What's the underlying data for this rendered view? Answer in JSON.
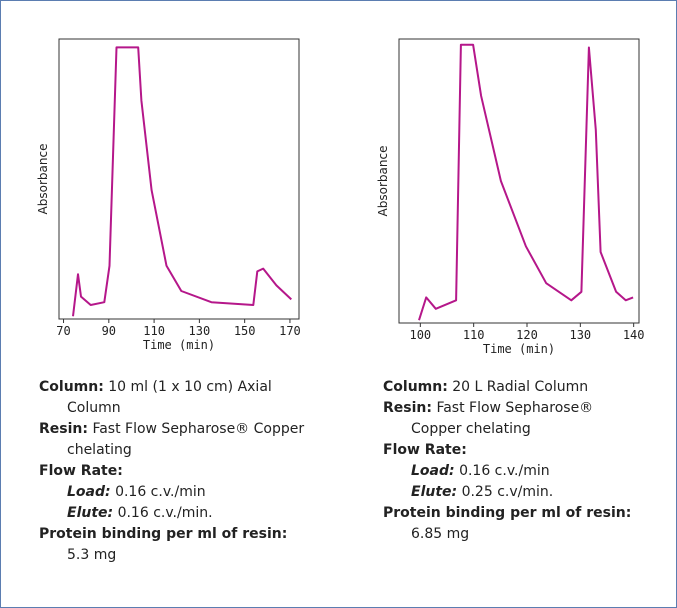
{
  "chart_data": [
    {
      "type": "line",
      "ylabel": "Absorbance",
      "xlabel": "Time (min)",
      "xlim": [
        68,
        174
      ],
      "xticks": [
        70,
        90,
        110,
        130,
        150,
        170
      ],
      "ylim": [
        0,
        100
      ],
      "series": [
        {
          "color": "#b5178a",
          "x": [
            74.2,
            76.4,
            77.7,
            82,
            88,
            90.3,
            93.4,
            103,
            104.4,
            108.9,
            115.5,
            122,
            135.3,
            153.8,
            155.6,
            158.2,
            164,
            170.6
          ],
          "values": [
            1,
            16,
            8,
            5,
            6,
            19,
            97,
            97,
            78,
            46,
            19,
            10,
            6,
            5,
            17,
            18,
            12,
            7
          ]
        }
      ]
    },
    {
      "type": "line",
      "ylabel": "Absorbance",
      "xlabel": "Time (min)",
      "xlim": [
        96,
        141
      ],
      "xticks": [
        100,
        110,
        120,
        130,
        140
      ],
      "ylim": [
        0,
        100
      ],
      "series": [
        {
          "color": "#b5178a",
          "x": [
            99.75,
            101.1,
            102.9,
            106.7,
            107.6,
            109.9,
            111.4,
            115.1,
            119.8,
            123.6,
            128.3,
            130.2,
            131.6,
            132.9,
            133.8,
            136.7,
            138.5,
            139.9
          ],
          "values": [
            1,
            9,
            5,
            8,
            98,
            98,
            80,
            50,
            27,
            14,
            8,
            11,
            97,
            68,
            25,
            11,
            8,
            9
          ]
        }
      ]
    }
  ],
  "captions": [
    {
      "column": {
        "label": "Column:",
        "text": "10 ml (1 x 10 cm) Axial Column"
      },
      "resin": {
        "label": "Resin:",
        "text": "Fast Flow Sepharose® Copper chelating"
      },
      "flow_rate": "Flow Rate:",
      "load": {
        "label": "Load:",
        "text": "0.16 c.v./min"
      },
      "elute": {
        "label": "Elute:",
        "text": "0.16 c.v./min."
      },
      "binding": {
        "label": "Protein binding per ml of resin:",
        "text": "5.3 mg"
      }
    },
    {
      "column": {
        "label": "Column:",
        "text": "20 L Radial Column"
      },
      "resin": {
        "label": "Resin:",
        "text": "Fast Flow Sepharose® Copper chelating"
      },
      "flow_rate": "Flow Rate:",
      "load": {
        "label": "Load:",
        "text": "0.16 c.v./min"
      },
      "elute": {
        "label": "Elute:",
        "text": "0.25 c.v/min."
      },
      "binding": {
        "label": "Protein binding per ml of resin:",
        "text": "6.85 mg"
      }
    }
  ]
}
